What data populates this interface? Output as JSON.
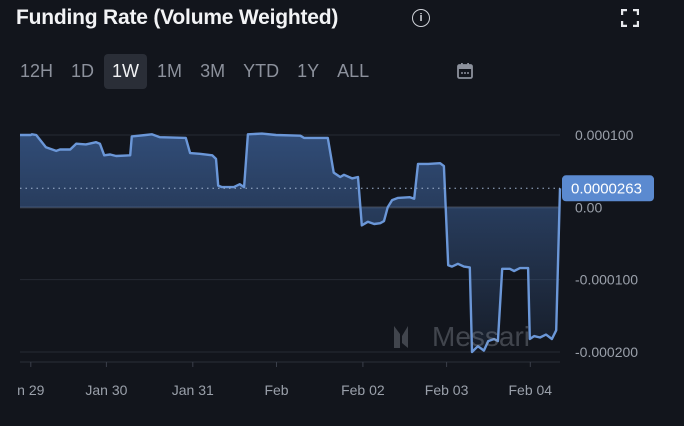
{
  "header": {
    "title": "Funding Rate (Volume Weighted)",
    "info_icon": "info-icon",
    "fullscreen_icon": "fullscreen-icon"
  },
  "ranges": [
    {
      "label": "12H"
    },
    {
      "label": "1D"
    },
    {
      "label": "1W",
      "active": true
    },
    {
      "label": "1M"
    },
    {
      "label": "3M"
    },
    {
      "label": "YTD"
    },
    {
      "label": "1Y"
    },
    {
      "label": "ALL"
    }
  ],
  "calendar_icon": "calendar-icon",
  "chart_data": {
    "type": "area",
    "title": "Funding Rate (Volume Weighted)",
    "ylim": [
      -0.0002,
      0.0001
    ],
    "yticks": [
      {
        "v": 0.0001,
        "label": "0.000100"
      },
      {
        "v": 0,
        "label": "0.00"
      },
      {
        "v": -0.0001,
        "label": "-0.000100"
      },
      {
        "v": -0.0002,
        "label": "-0.000200"
      }
    ],
    "xticks": [
      {
        "t": 0.02,
        "label": "n 29"
      },
      {
        "t": 0.16,
        "label": "Jan 30"
      },
      {
        "t": 0.32,
        "label": "Jan 31"
      },
      {
        "t": 0.475,
        "label": "Feb"
      },
      {
        "t": 0.635,
        "label": "Feb 02"
      },
      {
        "t": 0.79,
        "label": "Feb 03"
      },
      {
        "t": 0.945,
        "label": "Feb 04"
      }
    ],
    "current_value": 2.63e-05,
    "current_label": "0.0000263",
    "watermark": "Messari",
    "color": "#6b97d8",
    "series_e6": [
      [
        0,
        100
      ],
      [
        0.02,
        100
      ],
      [
        0.022,
        101
      ],
      [
        0.03,
        100
      ],
      [
        0.048,
        83
      ],
      [
        0.067,
        78
      ],
      [
        0.074,
        80
      ],
      [
        0.093,
        80
      ],
      [
        0.104,
        88
      ],
      [
        0.122,
        87
      ],
      [
        0.141,
        90
      ],
      [
        0.148,
        88
      ],
      [
        0.156,
        72
      ],
      [
        0.167,
        73
      ],
      [
        0.178,
        71
      ],
      [
        0.204,
        72
      ],
      [
        0.207,
        98
      ],
      [
        0.233,
        100
      ],
      [
        0.244,
        101
      ],
      [
        0.259,
        97
      ],
      [
        0.307,
        96
      ],
      [
        0.315,
        75
      ],
      [
        0.333,
        74
      ],
      [
        0.356,
        72
      ],
      [
        0.363,
        67
      ],
      [
        0.367,
        30
      ],
      [
        0.374,
        28
      ],
      [
        0.396,
        28
      ],
      [
        0.407,
        32
      ],
      [
        0.415,
        28
      ],
      [
        0.422,
        101
      ],
      [
        0.448,
        102
      ],
      [
        0.474,
        100
      ],
      [
        0.519,
        99
      ],
      [
        0.526,
        96
      ],
      [
        0.57,
        96
      ],
      [
        0.581,
        48
      ],
      [
        0.593,
        42
      ],
      [
        0.6,
        45
      ],
      [
        0.615,
        40
      ],
      [
        0.626,
        42
      ],
      [
        0.633,
        -25
      ],
      [
        0.644,
        -20
      ],
      [
        0.656,
        -23
      ],
      [
        0.667,
        -22
      ],
      [
        0.674,
        -19
      ],
      [
        0.681,
        0
      ],
      [
        0.689,
        10
      ],
      [
        0.7,
        13
      ],
      [
        0.722,
        14
      ],
      [
        0.73,
        12
      ],
      [
        0.737,
        60
      ],
      [
        0.756,
        60
      ],
      [
        0.778,
        61
      ],
      [
        0.785,
        57
      ],
      [
        0.793,
        -80
      ],
      [
        0.8,
        -82
      ],
      [
        0.811,
        -78
      ],
      [
        0.822,
        -82
      ],
      [
        0.833,
        -83
      ],
      [
        0.837,
        -200
      ],
      [
        0.848,
        -192
      ],
      [
        0.859,
        -198
      ],
      [
        0.867,
        -185
      ],
      [
        0.878,
        -182
      ],
      [
        0.885,
        -185
      ],
      [
        0.893,
        -85
      ],
      [
        0.907,
        -85
      ],
      [
        0.915,
        -88
      ],
      [
        0.926,
        -84
      ],
      [
        0.941,
        -84
      ],
      [
        0.944,
        -182
      ],
      [
        0.952,
        -178
      ],
      [
        0.963,
        -180
      ],
      [
        0.974,
        -176
      ],
      [
        0.985,
        -182
      ],
      [
        0.993,
        -170
      ],
      [
        1,
        26.3
      ]
    ]
  }
}
